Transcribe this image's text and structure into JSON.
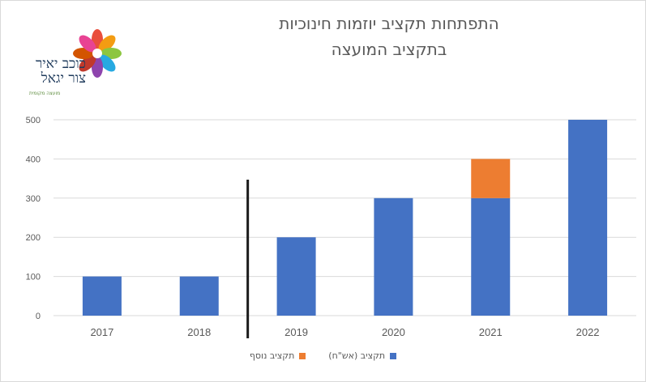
{
  "chart_data": {
    "type": "bar",
    "stacked": true,
    "title_line1": "התפתחות תקציב יוזמות חינוכיות",
    "title_line2": "בתקציב המועצה",
    "categories": [
      "2017",
      "2018",
      "2019",
      "2020",
      "2021",
      "2022"
    ],
    "series": [
      {
        "name": "תקציב (אש\"ח)",
        "color": "#4472c4",
        "values": [
          100,
          100,
          200,
          300,
          300,
          500
        ]
      },
      {
        "name": "תקציב נוסף",
        "color": "#ed7d31",
        "values": [
          0,
          0,
          0,
          0,
          100,
          0
        ]
      }
    ],
    "yticks": [
      "0",
      "100",
      "200",
      "300",
      "400",
      "500"
    ],
    "ylim": [
      0,
      500
    ],
    "grid": true,
    "legend_position": "bottom",
    "annotation": "vertical separator line between 2018 and 2019"
  },
  "logo": {
    "text_line1": "כוכב יאיר",
    "text_line2": "צור יגאל",
    "subtext": "מועצה מקומית"
  }
}
